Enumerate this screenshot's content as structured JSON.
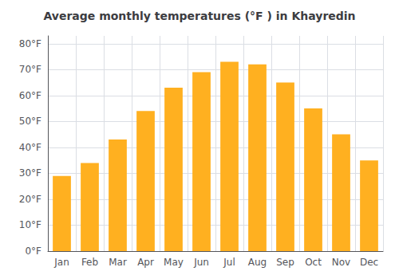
{
  "chart_data": {
    "type": "bar",
    "title": "Average monthly temperatures (°F ) in Khayredin",
    "categories": [
      "Jan",
      "Feb",
      "Mar",
      "Apr",
      "May",
      "Jun",
      "Jul",
      "Aug",
      "Sep",
      "Oct",
      "Nov",
      "Dec"
    ],
    "values": [
      29,
      34,
      43,
      54,
      63,
      69,
      73,
      72,
      65,
      55,
      45,
      35
    ],
    "color": "#FFB020",
    "ylim": [
      0,
      83
    ],
    "yticks": [
      {
        "value": 0,
        "label": "0°F"
      },
      {
        "value": 10,
        "label": "10°F"
      },
      {
        "value": 20,
        "label": "20°F"
      },
      {
        "value": 30,
        "label": "30°F"
      },
      {
        "value": 40,
        "label": "40°F"
      },
      {
        "value": 50,
        "label": "50°F"
      },
      {
        "value": 60,
        "label": "60°F"
      },
      {
        "value": 70,
        "label": "70°F"
      },
      {
        "value": 80,
        "label": "80°F"
      }
    ],
    "grid": true
  }
}
